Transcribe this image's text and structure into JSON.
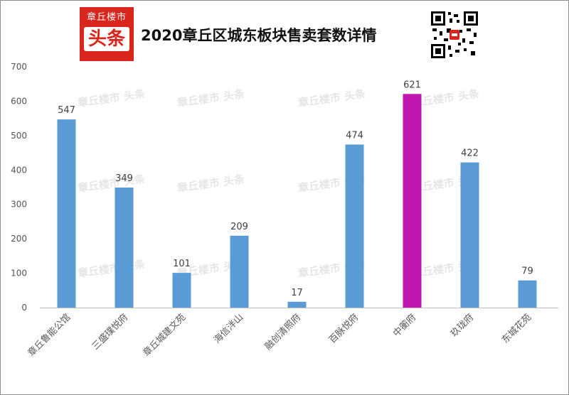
{
  "logo": {
    "line1": "章丘楼市",
    "line2": "头条"
  },
  "chart_data": {
    "type": "bar",
    "title": "2020章丘区城东板块售卖套数详情",
    "categories": [
      "章丘鲁能公馆",
      "三盛璞悦府",
      "章丘城建文苑",
      "海信泮山",
      "融创清照府",
      "百脉悦府",
      "中蘅府",
      "玖珑府",
      "东城花苑"
    ],
    "values": [
      547,
      349,
      101,
      209,
      17,
      474,
      621,
      422,
      79
    ],
    "colors": [
      "#5b9bd5",
      "#5b9bd5",
      "#5b9bd5",
      "#5b9bd5",
      "#5b9bd5",
      "#5b9bd5",
      "#c117b0",
      "#5b9bd5",
      "#5b9bd5"
    ],
    "ylim": [
      0,
      700
    ],
    "yticks": [
      0,
      100,
      200,
      300,
      400,
      500,
      600,
      700
    ],
    "xlabel": "",
    "ylabel": "",
    "grid": false,
    "data_labels": true
  },
  "watermark": "章丘楼市 头条"
}
